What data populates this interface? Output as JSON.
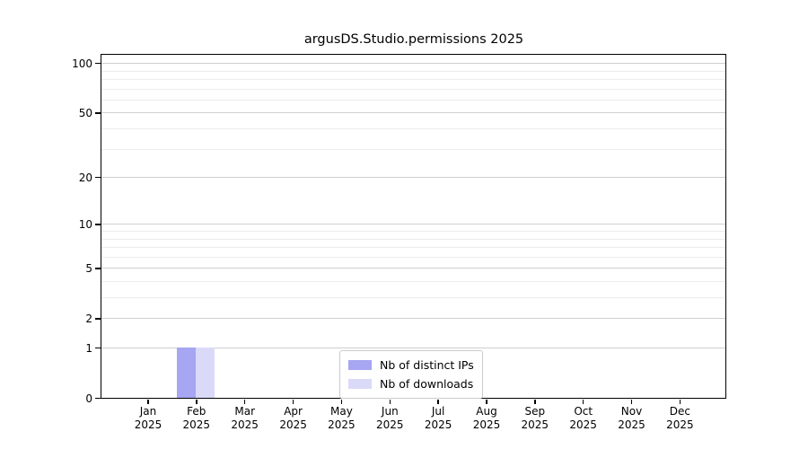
{
  "title": "argusDS.Studio.permissions 2025",
  "chart_data": {
    "type": "bar",
    "title": "argusDS.Studio.permissions 2025",
    "categories": [
      "Jan 2025",
      "Feb 2025",
      "Mar 2025",
      "Apr 2025",
      "May 2025",
      "Jun 2025",
      "Jul 2025",
      "Aug 2025",
      "Sep 2025",
      "Oct 2025",
      "Nov 2025",
      "Dec 2025"
    ],
    "series": [
      {
        "name": "Nb of distinct IPs",
        "color": "#a6a6f2",
        "values": [
          0,
          1,
          0,
          0,
          0,
          0,
          0,
          0,
          0,
          0,
          0,
          0
        ]
      },
      {
        "name": "Nb of downloads",
        "color": "#dadaf8",
        "values": [
          0,
          1,
          0,
          0,
          0,
          0,
          0,
          0,
          0,
          0,
          0,
          0
        ]
      }
    ],
    "yscale": "log1p",
    "ylim": [
      0,
      112
    ],
    "xlabel": "",
    "ylabel": "",
    "y_major_ticks": [
      0,
      1,
      2,
      5,
      10,
      20,
      50,
      100
    ],
    "y_minor_gridlines": [
      3,
      4,
      6,
      7,
      8,
      9,
      30,
      40,
      60,
      70,
      80,
      90
    ],
    "grid": true,
    "legend_position": "lower center",
    "colors": {
      "major_grid": "#cfcfcf",
      "minor_grid": "#ececec",
      "spine": "#000000",
      "text": "#000000",
      "legend_border": "#cccccc",
      "background": "#ffffff"
    }
  }
}
